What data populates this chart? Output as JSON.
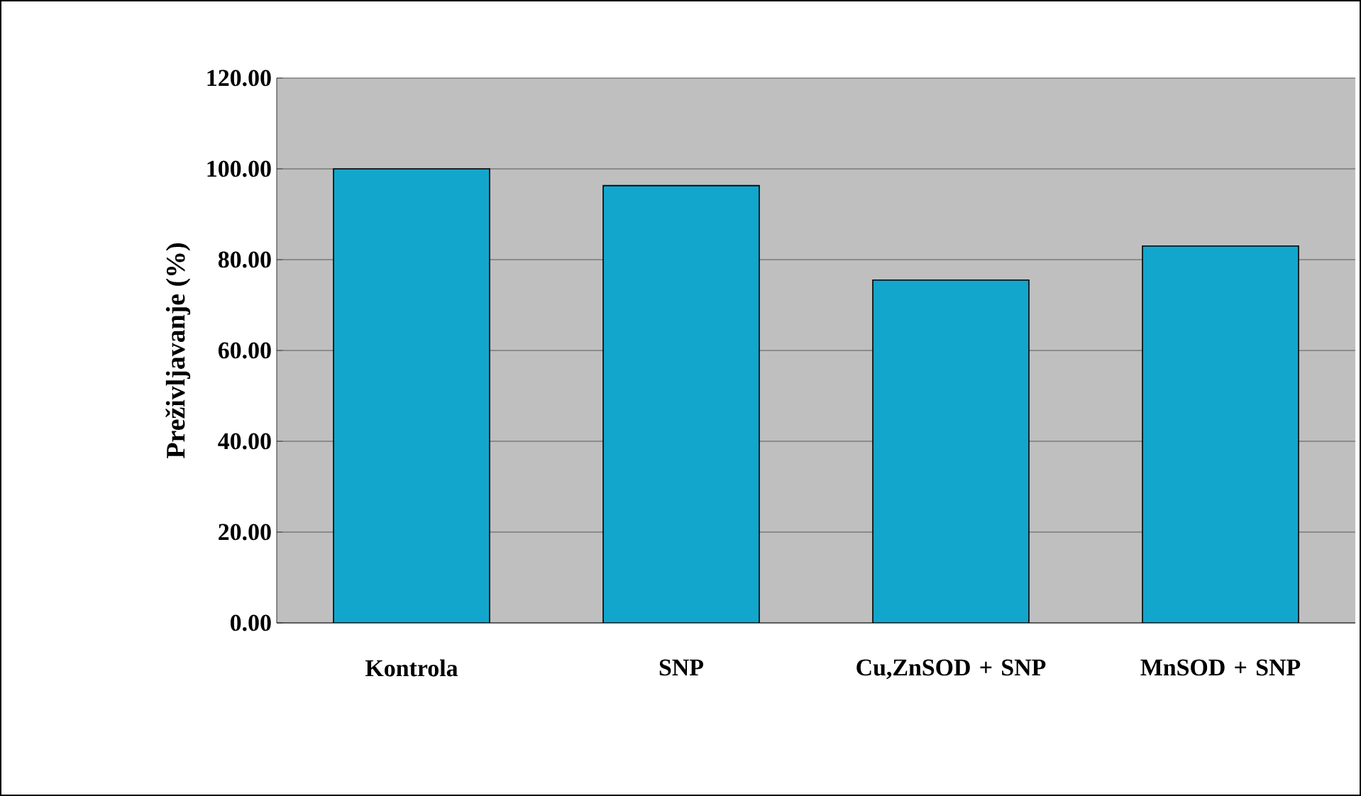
{
  "chart_data": {
    "type": "bar",
    "ylabel": "Preživljavanje (%)",
    "categories": [
      "Kontrola",
      "SNP",
      "Cu,ZnSOD + SNP",
      "MnSOD + SNP"
    ],
    "values": [
      100,
      96.3,
      75.5,
      83.0
    ],
    "color": "#12a6cc",
    "ylim": [
      0,
      120
    ],
    "yticks": [
      {
        "value": 0,
        "label": "0.00"
      },
      {
        "value": 20,
        "label": "20.00"
      },
      {
        "value": 40,
        "label": "40.00"
      },
      {
        "value": 60,
        "label": "60.00"
      },
      {
        "value": 80,
        "label": "80.00"
      },
      {
        "value": 100,
        "label": "100.00"
      },
      {
        "value": 120,
        "label": "120.00"
      }
    ],
    "grid": "y"
  }
}
